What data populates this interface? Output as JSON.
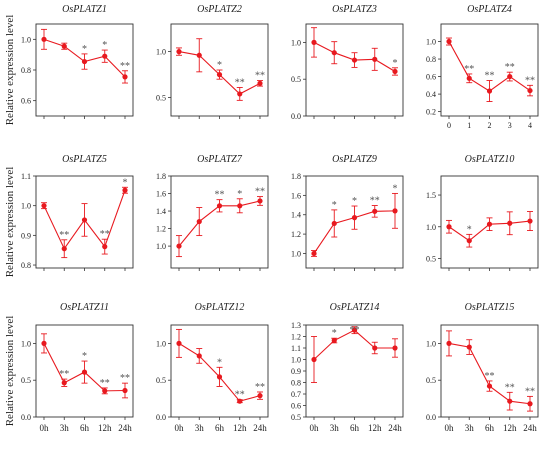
{
  "ylabel": "Relative expression level",
  "colors": {
    "series": "#e8191f",
    "axis": "#333333",
    "star": "#555555"
  },
  "chart_data": [
    {
      "type": "line",
      "title": "OsPLATZ1",
      "x": [
        "0",
        "1",
        "2",
        "3",
        "4"
      ],
      "ylim": [
        0.5,
        1.1
      ],
      "yticks": [
        "0.6",
        "0.8",
        "1.0"
      ],
      "xticks": [],
      "values": [
        1.0,
        0.955,
        0.855,
        0.89,
        0.755
      ],
      "err": [
        0.065,
        0.02,
        0.05,
        0.04,
        0.04
      ],
      "annotations": [
        "",
        "",
        "*",
        "*",
        "**"
      ]
    },
    {
      "type": "line",
      "title": "OsPLATZ2",
      "x": [
        "0",
        "1",
        "2",
        "3",
        "4"
      ],
      "ylim": [
        0.3,
        1.3
      ],
      "yticks": [
        "0.5",
        "1.0"
      ],
      "xticks": [],
      "values": [
        1.0,
        0.96,
        0.75,
        0.54,
        0.655
      ],
      "err": [
        0.04,
        0.18,
        0.05,
        0.07,
        0.03
      ],
      "annotations": [
        "",
        "",
        "*",
        "**",
        "**"
      ]
    },
    {
      "type": "line",
      "title": "OsPLATZ3",
      "x": [
        "0",
        "1",
        "2",
        "3",
        "4"
      ],
      "ylim": [
        0.0,
        1.25
      ],
      "yticks": [
        "0.0",
        "0.5",
        "1.0"
      ],
      "xticks": [],
      "values": [
        1.0,
        0.86,
        0.76,
        0.77,
        0.605
      ],
      "err": [
        0.2,
        0.15,
        0.1,
        0.15,
        0.05
      ],
      "annotations": [
        "",
        "",
        "",
        "",
        "*"
      ]
    },
    {
      "type": "line",
      "title": "OsPLATZ4",
      "x": [
        "0",
        "1",
        "2",
        "3",
        "4"
      ],
      "ylim": [
        0.15,
        1.2
      ],
      "yticks": [
        "0.2",
        "0.4",
        "0.6",
        "0.8",
        "1.0"
      ],
      "xticks": [
        "0",
        "1",
        "2",
        "3",
        "4"
      ],
      "values": [
        1.0,
        0.58,
        0.435,
        0.6,
        0.44
      ],
      "err": [
        0.04,
        0.05,
        0.12,
        0.05,
        0.06
      ],
      "annotations": [
        "",
        "**",
        "**",
        "**",
        "**"
      ]
    },
    {
      "type": "line",
      "title": "OsPLATZ5",
      "x": [
        "0",
        "1",
        "2",
        "3",
        "4"
      ],
      "ylim": [
        0.79,
        1.1
      ],
      "yticks": [
        "0.8",
        "0.9",
        "1.0",
        "1.1"
      ],
      "xticks": [],
      "values": [
        1.0,
        0.855,
        0.952,
        0.862,
        1.052
      ],
      "err": [
        0.01,
        0.03,
        0.055,
        0.025,
        0.01
      ],
      "annotations": [
        "",
        "**",
        "",
        "**",
        "*"
      ]
    },
    {
      "type": "line",
      "title": "OsPLATZ7",
      "x": [
        "0",
        "1",
        "2",
        "3",
        "4"
      ],
      "ylim": [
        0.75,
        1.8
      ],
      "yticks": [
        "1.0",
        "1.2",
        "1.4",
        "1.6",
        "1.8"
      ],
      "xticks": [],
      "values": [
        1.0,
        1.28,
        1.46,
        1.46,
        1.515
      ],
      "err": [
        0.12,
        0.16,
        0.07,
        0.08,
        0.05
      ],
      "annotations": [
        "",
        "",
        "**",
        "*",
        "**"
      ]
    },
    {
      "type": "line",
      "title": "OsPLATZ9",
      "x": [
        "0",
        "1",
        "2",
        "3",
        "4"
      ],
      "ylim": [
        0.85,
        1.8
      ],
      "yticks": [
        "1.0",
        "1.2",
        "1.4",
        "1.6",
        "1.8"
      ],
      "xticks": [],
      "values": [
        1.0,
        1.31,
        1.37,
        1.435,
        1.44
      ],
      "err": [
        0.03,
        0.14,
        0.12,
        0.06,
        0.18
      ],
      "annotations": [
        "",
        "*",
        "*",
        "**",
        "*"
      ]
    },
    {
      "type": "line",
      "title": "OsPLATZ10",
      "x": [
        "0",
        "1",
        "2",
        "3",
        "4"
      ],
      "ylim": [
        0.35,
        1.8
      ],
      "yticks": [
        "0.5",
        "1.0",
        "1.5"
      ],
      "xticks": [],
      "values": [
        1.0,
        0.78,
        1.04,
        1.055,
        1.09
      ],
      "err": [
        0.1,
        0.1,
        0.1,
        0.18,
        0.15
      ],
      "annotations": [
        "",
        "*",
        "",
        "",
        ""
      ]
    },
    {
      "type": "line",
      "title": "OsPLATZ11",
      "x": [
        "0h",
        "3h",
        "6h",
        "12h",
        "24h"
      ],
      "ylim": [
        0.0,
        1.25
      ],
      "yticks": [
        "0.0",
        "0.5",
        "1.0"
      ],
      "xticks": [
        "0h",
        "3h",
        "6h",
        "12h",
        "24h"
      ],
      "values": [
        1.0,
        0.465,
        0.61,
        0.355,
        0.36
      ],
      "err": [
        0.13,
        0.05,
        0.15,
        0.04,
        0.1
      ],
      "annotations": [
        "",
        "**",
        "*",
        "**",
        "**"
      ]
    },
    {
      "type": "line",
      "title": "OsPLATZ12",
      "x": [
        "0h",
        "3h",
        "6h",
        "12h",
        "24h"
      ],
      "ylim": [
        0.0,
        1.25
      ],
      "yticks": [
        "0.0",
        "0.5",
        "1.0"
      ],
      "xticks": [
        "0h",
        "3h",
        "6h",
        "12h",
        "24h"
      ],
      "values": [
        1.0,
        0.83,
        0.545,
        0.215,
        0.29
      ],
      "err": [
        0.19,
        0.1,
        0.13,
        0.02,
        0.05
      ],
      "annotations": [
        "",
        "",
        "*",
        "**",
        "**"
      ]
    },
    {
      "type": "line",
      "title": "OsPLATZ14",
      "x": [
        "0h",
        "3h",
        "6h",
        "12h",
        "24h"
      ],
      "ylim": [
        0.5,
        1.3
      ],
      "yticks": [
        "0.5",
        "0.6",
        "0.7",
        "0.8",
        "0.9",
        "1.0",
        "1.1",
        "1.2",
        "1.3"
      ],
      "xticks": [
        "0h",
        "3h",
        "6h",
        "12h",
        "24h"
      ],
      "values": [
        1.0,
        1.165,
        1.255,
        1.1,
        1.1
      ],
      "err": [
        0.2,
        0.02,
        0.03,
        0.05,
        0.08
      ],
      "annotations": [
        "",
        "*",
        "**",
        "",
        ""
      ]
    },
    {
      "type": "line",
      "title": "OsPLATZ15",
      "x": [
        "0h",
        "3h",
        "6h",
        "12h",
        "24h"
      ],
      "ylim": [
        0.0,
        1.25
      ],
      "yticks": [
        "0.0",
        "0.5",
        "1.0"
      ],
      "xticks": [
        "0h",
        "3h",
        "6h",
        "12h",
        "24h"
      ],
      "values": [
        1.0,
        0.95,
        0.42,
        0.215,
        0.18
      ],
      "err": [
        0.17,
        0.1,
        0.07,
        0.12,
        0.1
      ],
      "annotations": [
        "",
        "",
        "**",
        "**",
        "**"
      ]
    }
  ]
}
